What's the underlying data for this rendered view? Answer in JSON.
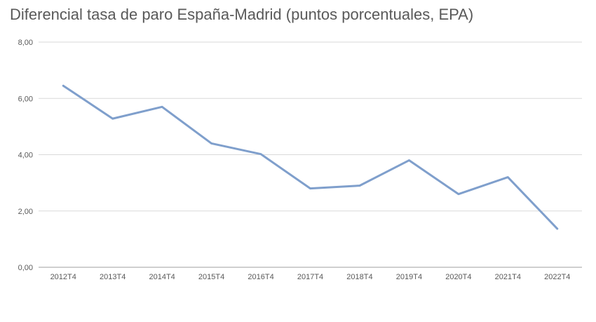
{
  "chart_data": {
    "type": "line",
    "title": "Diferencial tasa de paro España-Madrid (puntos porcentuales, EPA)",
    "xlabel": "",
    "ylabel": "",
    "categories": [
      "2012T4",
      "2013T4",
      "2014T4",
      "2015T4",
      "2016T4",
      "2017T4",
      "2018T4",
      "2019T4",
      "2020T4",
      "2021T4",
      "2022T4"
    ],
    "series": [
      {
        "values": [
          6.45,
          5.28,
          5.7,
          4.4,
          4.02,
          2.8,
          2.9,
          3.8,
          2.6,
          3.2,
          1.37
        ],
        "color": "#7f9fcc"
      }
    ],
    "ylim": [
      0,
      8
    ],
    "yticks": [
      0,
      2,
      4,
      6,
      8
    ],
    "ytick_labels": [
      "0,00",
      "2,00",
      "4,00",
      "6,00",
      "8,00"
    ],
    "grid": true,
    "legend": "none"
  },
  "colors": {
    "grid": "#d9d9d9",
    "axis": "#bfbfbf",
    "text": "#595959"
  }
}
